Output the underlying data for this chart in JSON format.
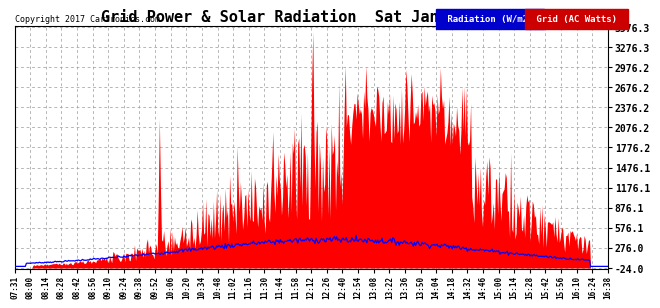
{
  "title": "Grid Power & Solar Radiation  Sat Jan 21 16:51",
  "copyright": "Copyright 2017 Cartronics.com",
  "legend_label1": "Radiation (W/m2)",
  "legend_label2": "Grid (AC Watts)",
  "legend_bg1": "#0000cc",
  "legend_bg2": "#cc0000",
  "ytick_labels": [
    "3576.3",
    "3276.3",
    "2976.2",
    "2676.2",
    "2376.2",
    "2076.2",
    "1776.2",
    "1476.1",
    "1176.1",
    "876.1",
    "576.1",
    "276.0",
    "-24.0"
  ],
  "ytick_vals": [
    3576.3,
    3276.3,
    2976.2,
    2676.2,
    2376.2,
    2076.2,
    1776.2,
    1476.1,
    1176.1,
    876.1,
    576.1,
    276.0,
    -24.0
  ],
  "ymin": -24.0,
  "ymax": 3576.3,
  "background_color": "#ffffff",
  "plot_bg": "#ffffff",
  "grid_color": "#999999",
  "red_fill": "#ff0000",
  "blue_line": "#0000ff",
  "xtick_labels": [
    "07:31",
    "08:00",
    "08:14",
    "08:28",
    "08:42",
    "08:56",
    "09:10",
    "09:24",
    "09:38",
    "09:52",
    "10:06",
    "10:20",
    "10:34",
    "10:48",
    "11:02",
    "11:16",
    "11:30",
    "11:44",
    "11:58",
    "12:12",
    "12:26",
    "12:40",
    "12:54",
    "13:08",
    "13:22",
    "13:36",
    "13:50",
    "14:04",
    "14:18",
    "14:32",
    "14:46",
    "15:00",
    "15:14",
    "15:28",
    "15:42",
    "15:56",
    "16:10",
    "16:24",
    "16:38"
  ],
  "n_points": 550,
  "seed": 7
}
